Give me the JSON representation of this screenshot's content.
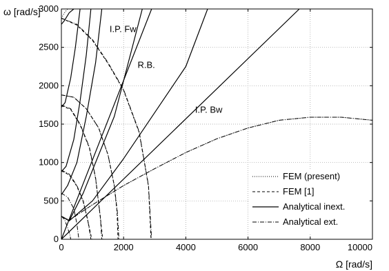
{
  "chart_data": {
    "type": "line",
    "xlabel": "Ω [rad/s]",
    "ylabel": "ω [rad/s]",
    "xlim": [
      0,
      10000
    ],
    "ylim": [
      0,
      3000
    ],
    "xticks": [
      0,
      2000,
      4000,
      6000,
      8000,
      10000
    ],
    "yticks": [
      0,
      500,
      1000,
      1500,
      2000,
      2500,
      3000
    ],
    "xtick_labels": [
      "0",
      "2000",
      "4000",
      "6000",
      "8000",
      "10000"
    ],
    "ytick_labels": [
      "0",
      "500",
      "1000",
      "1500",
      "2000",
      "2500",
      "3000"
    ],
    "grid": true,
    "legend_placement": "bottom-right",
    "legend": [
      {
        "label": "FEM (present)",
        "style": "dotted"
      },
      {
        "label": "FEM [1]",
        "style": "dashed"
      },
      {
        "label": "Analytical inext.",
        "style": "solid"
      },
      {
        "label": "Analytical ext.",
        "style": "dashdot"
      }
    ],
    "annotations": [
      {
        "text": "I.P. Fw",
        "x": 1550,
        "y": 2700
      },
      {
        "text": "R.B.",
        "x": 2450,
        "y": 2230
      },
      {
        "text": "I.P. Bw",
        "x": 4300,
        "y": 1650
      }
    ],
    "series": [
      {
        "style": "solid",
        "x": [
          0,
          2900
        ],
        "y": [
          0,
          3000
        ]
      },
      {
        "style": "solid",
        "x": [
          0,
          7650
        ],
        "y": [
          0,
          3000
        ]
      },
      {
        "style": "solid",
        "x": [
          250,
          1000,
          2000,
          3000,
          4000,
          4700
        ],
        "y": [
          240,
          500,
          1050,
          1650,
          2250,
          3000
        ]
      },
      {
        "style": "solid",
        "x": [
          0,
          250,
          700,
          1200,
          1700,
          2600
        ],
        "y": [
          300,
          240,
          600,
          1100,
          1600,
          3000
        ]
      },
      {
        "style": "solid",
        "x": [
          0,
          200,
          500,
          800,
          1100,
          1300
        ],
        "y": [
          580,
          700,
          1000,
          1600,
          2300,
          3000
        ]
      },
      {
        "style": "solid",
        "x": [
          0,
          150,
          400,
          600,
          800,
          950
        ],
        "y": [
          880,
          950,
          1300,
          1800,
          2400,
          3000
        ]
      },
      {
        "style": "solid",
        "x": [
          0,
          120,
          300,
          450,
          600
        ],
        "y": [
          1720,
          1780,
          2100,
          2500,
          3000
        ]
      },
      {
        "style": "solid",
        "x": [
          0,
          100,
          250,
          400
        ],
        "y": [
          2800,
          2850,
          2950,
          3000
        ]
      },
      {
        "style": "dashdot",
        "x": [
          0,
          250,
          1000,
          2000,
          3000,
          4000,
          5000,
          6000,
          7000,
          8000,
          9000,
          10000
        ],
        "y": [
          300,
          250,
          450,
          700,
          920,
          1130,
          1310,
          1450,
          1550,
          1590,
          1590,
          1550
        ]
      },
      {
        "style": "dashdot",
        "x": [
          0,
          500,
          1000,
          1500,
          2000,
          2500,
          2800,
          2900
        ],
        "y": [
          2880,
          2800,
          2600,
          2300,
          1950,
          1400,
          700,
          0
        ]
      },
      {
        "style": "dashdot",
        "x": [
          0,
          400,
          800,
          1200,
          1500,
          1700,
          1800,
          1850
        ],
        "y": [
          1880,
          1850,
          1700,
          1450,
          1100,
          700,
          350,
          0
        ]
      },
      {
        "style": "dashdot",
        "x": [
          0,
          300,
          600,
          900,
          1100,
          1250,
          1300
        ],
        "y": [
          1750,
          1700,
          1500,
          1200,
          800,
          300,
          0
        ]
      },
      {
        "style": "dashdot",
        "x": [
          0,
          250,
          500,
          700,
          850,
          950
        ],
        "y": [
          900,
          850,
          700,
          500,
          250,
          0
        ]
      },
      {
        "style": "dashdot",
        "x": [
          0,
          200,
          400,
          500,
          560
        ],
        "y": [
          600,
          550,
          400,
          200,
          0
        ]
      },
      {
        "style": "dashdot",
        "x": [
          0,
          100,
          200,
          280,
          300
        ],
        "y": [
          300,
          260,
          150,
          50,
          0
        ]
      },
      {
        "style": "dashed",
        "x": [
          0,
          500,
          1000,
          1500,
          2000,
          2500,
          2800,
          2880
        ],
        "y": [
          2880,
          2790,
          2590,
          2290,
          1940,
          1390,
          690,
          0
        ]
      },
      {
        "style": "dashed",
        "x": [
          0,
          400,
          800,
          1200,
          1500,
          1700,
          1790,
          1820
        ],
        "y": [
          1880,
          1850,
          1700,
          1450,
          1100,
          700,
          350,
          0
        ]
      },
      {
        "style": "dashed",
        "x": [
          0,
          300,
          600,
          900,
          1100,
          1250,
          1330
        ],
        "y": [
          1740,
          1690,
          1490,
          1190,
          790,
          290,
          0
        ]
      },
      {
        "style": "dashed",
        "x": [
          0,
          250,
          500,
          700,
          850,
          980
        ],
        "y": [
          890,
          840,
          690,
          490,
          240,
          0
        ]
      },
      {
        "style": "dotted",
        "x": [
          0,
          250,
          1000,
          2000,
          3000,
          4000,
          5000,
          6000,
          7000,
          8000,
          9000,
          10000
        ],
        "y": [
          300,
          250,
          450,
          700,
          920,
          1130,
          1310,
          1450,
          1550,
          1590,
          1590,
          1550
        ]
      },
      {
        "style": "dotted",
        "x": [
          0,
          100,
          200,
          300
        ],
        "y": [
          2880,
          2950,
          3000,
          3000
        ]
      }
    ]
  }
}
